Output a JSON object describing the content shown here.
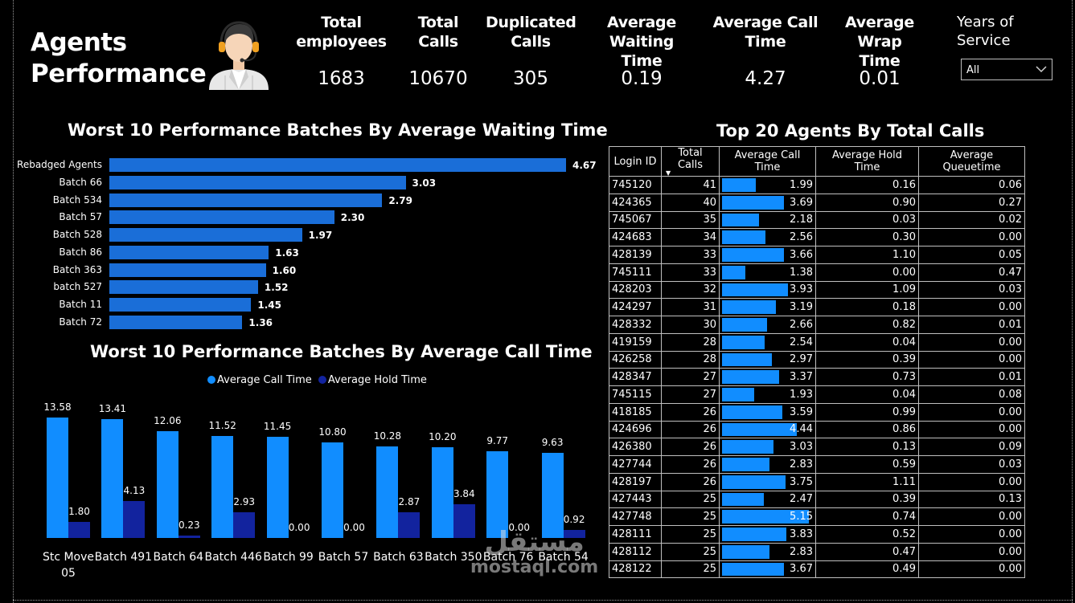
{
  "title": {
    "line1": "Agents",
    "line2": "Performance"
  },
  "kpis": {
    "total_employees": {
      "label1": "Total",
      "label2": "employees",
      "value": "1683"
    },
    "total_calls": {
      "label1": "Total",
      "label2": "Calls",
      "value": "10670"
    },
    "duplicated_calls": {
      "label1": "Duplicated",
      "label2": "Calls",
      "value": "305"
    },
    "avg_waiting": {
      "label1": "Average Waiting",
      "label2": "Time",
      "value": "0.19"
    },
    "avg_call": {
      "label1": "Average Call",
      "label2": "Time",
      "value": "4.27"
    },
    "avg_wrap": {
      "label1": "Average Wrap",
      "label2": "Time",
      "value": "0.01"
    }
  },
  "filter": {
    "label1": "Years of",
    "label2": "Service",
    "value": "All"
  },
  "waiting_chart": {
    "title": "Worst 10 Performance Batches By Average Waiting Time"
  },
  "call_chart": {
    "title": "Worst 10 Performance Batches By Average Call Time",
    "legend1": "Average Call Time",
    "legend2": "Average Hold Time"
  },
  "colors": {
    "bar_blue": "#1a6ed8",
    "call_time": "#118dff",
    "hold_time": "#12239e"
  },
  "chart_data": [
    {
      "type": "bar",
      "orientation": "horizontal",
      "title": "Worst 10 Performance Batches By Average Waiting Time",
      "categories": [
        "Rebadged Agents",
        "Batch 66",
        "Batch 534",
        "Batch 57",
        "Batch 528",
        "Batch 86",
        "Batch 363",
        "batch 527",
        "Batch 11",
        "Batch 72"
      ],
      "labels": [
        "4.67",
        "3.03",
        "2.79",
        "2.30",
        "1.97",
        "1.63",
        "1.60",
        "1.52",
        "1.45",
        "1.36"
      ],
      "values": [
        4.67,
        3.03,
        2.79,
        2.3,
        1.97,
        1.63,
        1.6,
        1.52,
        1.45,
        1.36
      ],
      "xlim": [
        0,
        4.67
      ]
    },
    {
      "type": "bar",
      "title": "Worst 10 Performance Batches By Average Call Time",
      "categories": [
        "Stc Move 05",
        "Batch 491",
        "Batch 64",
        "Batch 446",
        "Batch 99",
        "Batch 57",
        "Batch 63",
        "Batch 350",
        "Batch 76",
        "Batch 54"
      ],
      "series": [
        {
          "name": "Average Call Time",
          "labels": [
            "13.58",
            "13.41",
            "12.06",
            "11.52",
            "11.45",
            "10.80",
            "10.28",
            "10.20",
            "9.77",
            "9.63"
          ],
          "values": [
            13.58,
            13.41,
            12.06,
            11.52,
            11.45,
            10.8,
            10.28,
            10.2,
            9.77,
            9.63
          ]
        },
        {
          "name": "Average Hold Time",
          "labels": [
            "1.80",
            "4.13",
            "0.23",
            "2.93",
            "0.00",
            "0.00",
            "2.87",
            "3.84",
            "0.00",
            "0.92"
          ],
          "values": [
            1.8,
            4.13,
            0.23,
            2.93,
            0.0,
            0.0,
            2.87,
            3.84,
            0.0,
            0.92
          ]
        }
      ],
      "ylim": [
        0,
        13.58
      ]
    }
  ],
  "agents_table": {
    "title": "Top 20 Agents By Total Calls",
    "headers": [
      "Login ID",
      "Total Calls",
      "Average Call Time",
      "Average Hold Time",
      "Average Queuetime"
    ],
    "max_call_time": 5.15,
    "rows": [
      {
        "id": "745120",
        "calls": "41",
        "act": "1.99",
        "aht": "0.16",
        "aqt": "0.06"
      },
      {
        "id": "424365",
        "calls": "40",
        "act": "3.69",
        "aht": "0.90",
        "aqt": "0.27"
      },
      {
        "id": "745067",
        "calls": "35",
        "act": "2.18",
        "aht": "0.03",
        "aqt": "0.02"
      },
      {
        "id": "424683",
        "calls": "34",
        "act": "2.56",
        "aht": "0.30",
        "aqt": "0.00"
      },
      {
        "id": "428139",
        "calls": "33",
        "act": "3.66",
        "aht": "1.10",
        "aqt": "0.05"
      },
      {
        "id": "745111",
        "calls": "33",
        "act": "1.38",
        "aht": "0.00",
        "aqt": "0.47"
      },
      {
        "id": "428203",
        "calls": "32",
        "act": "3.93",
        "aht": "1.09",
        "aqt": "0.03"
      },
      {
        "id": "424297",
        "calls": "31",
        "act": "3.19",
        "aht": "0.18",
        "aqt": "0.00"
      },
      {
        "id": "428332",
        "calls": "30",
        "act": "2.66",
        "aht": "0.82",
        "aqt": "0.01"
      },
      {
        "id": "419159",
        "calls": "28",
        "act": "2.54",
        "aht": "0.04",
        "aqt": "0.00"
      },
      {
        "id": "426258",
        "calls": "28",
        "act": "2.97",
        "aht": "0.39",
        "aqt": "0.00"
      },
      {
        "id": "428347",
        "calls": "27",
        "act": "3.37",
        "aht": "0.73",
        "aqt": "0.01"
      },
      {
        "id": "745115",
        "calls": "27",
        "act": "1.93",
        "aht": "0.04",
        "aqt": "0.08"
      },
      {
        "id": "418185",
        "calls": "26",
        "act": "3.59",
        "aht": "0.99",
        "aqt": "0.00"
      },
      {
        "id": "424696",
        "calls": "26",
        "act": "4.44",
        "aht": "0.86",
        "aqt": "0.00"
      },
      {
        "id": "426380",
        "calls": "26",
        "act": "3.03",
        "aht": "0.13",
        "aqt": "0.09"
      },
      {
        "id": "427744",
        "calls": "26",
        "act": "2.83",
        "aht": "0.59",
        "aqt": "0.03"
      },
      {
        "id": "428197",
        "calls": "26",
        "act": "3.75",
        "aht": "1.11",
        "aqt": "0.00"
      },
      {
        "id": "427443",
        "calls": "25",
        "act": "2.47",
        "aht": "0.39",
        "aqt": "0.13"
      },
      {
        "id": "427748",
        "calls": "25",
        "act": "5.15",
        "aht": "0.74",
        "aqt": "0.00"
      },
      {
        "id": "428111",
        "calls": "25",
        "act": "3.83",
        "aht": "0.52",
        "aqt": "0.00"
      },
      {
        "id": "428112",
        "calls": "25",
        "act": "2.83",
        "aht": "0.47",
        "aqt": "0.00"
      },
      {
        "id": "428122",
        "calls": "25",
        "act": "3.67",
        "aht": "0.49",
        "aqt": "0.00"
      }
    ]
  },
  "watermark": {
    "arabic": "مستقل",
    "latin": "mostaql.com"
  }
}
